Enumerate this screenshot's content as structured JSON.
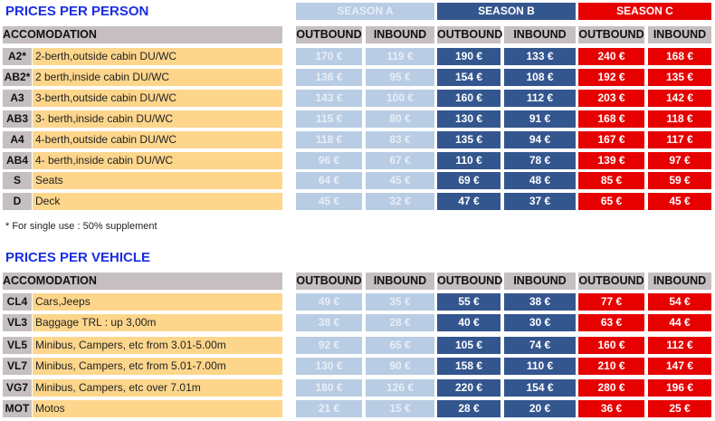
{
  "person": {
    "title": "PRICES PER PERSON",
    "seasons": [
      "SEASON A",
      "SEASON B",
      "SEASON C"
    ],
    "accomodation_header": "ACCOMODATION",
    "outbound": "OUTBOUND",
    "inbound": "INBOUND",
    "rows": [
      {
        "code": "A2*",
        "desc": "2-berth,outside cabin  DU/WC",
        "prices": [
          "170 €",
          "119 €",
          "190 €",
          "133 €",
          "240 €",
          "168 €"
        ]
      },
      {
        "code": "AB2*",
        "desc": "2 berth,inside cabin  DU/WC",
        "prices": [
          "136 €",
          "95 €",
          "154 €",
          "108 €",
          "192 €",
          "135 €"
        ]
      },
      {
        "code": "A3",
        "desc": "3-berth,outside cabin  DU/WC",
        "prices": [
          "143 €",
          "100 €",
          "160 €",
          "112 €",
          "203 €",
          "142 €"
        ]
      },
      {
        "code": "AB3",
        "desc": "3- berth,inside cabin  DU/WC",
        "prices": [
          "115 €",
          "80 €",
          "130 €",
          "91 €",
          "168 €",
          "118 €"
        ]
      },
      {
        "code": "A4",
        "desc": "4-berth,outside cabin  DU/WC",
        "prices": [
          "118 €",
          "83 €",
          "135 €",
          "94 €",
          "167 €",
          "117 €"
        ]
      },
      {
        "code": "AB4",
        "desc": "4- berth,inside cabin  DU/WC",
        "prices": [
          "96 €",
          "67 €",
          "110 €",
          "78 €",
          "139 €",
          "97 €"
        ]
      },
      {
        "code": "S",
        "desc": "Seats",
        "prices": [
          "64 €",
          "45 €",
          "69 €",
          "48 €",
          "85 €",
          "59 €"
        ]
      },
      {
        "code": "D",
        "desc": "Deck",
        "prices": [
          "45 €",
          "32 €",
          "47 €",
          "37 €",
          "65 €",
          "45 €"
        ]
      }
    ],
    "note": "* For single use : 50% supplement"
  },
  "vehicle": {
    "title": "PRICES PER VEHICLE",
    "accomodation_header": "ACCOMODATION",
    "outbound": "OUTBOUND",
    "inbound": "INBOUND",
    "rows": [
      {
        "code": "CL4",
        "desc": "Cars,Jeeps",
        "prices": [
          "49 €",
          "35 €",
          "55 €",
          "38 €",
          "77 €",
          "54 €"
        ]
      },
      {
        "code": "VL3",
        "desc": "Baggage TRL : up 3,00m",
        "prices": [
          "38 €",
          "28 €",
          "40 €",
          "30 €",
          "63 €",
          "44 €"
        ]
      },
      {
        "code": "VL5",
        "desc": "Minibus, Campers, etc from 3.01-5.00m",
        "prices": [
          "92 €",
          "65 €",
          "105 €",
          "74 €",
          "160 €",
          "112 €"
        ]
      },
      {
        "code": "VL7",
        "desc": "Minibus, Campers, etc from 5.01-7.00m",
        "prices": [
          "130 €",
          "90 €",
          "158 €",
          "110 €",
          "210 €",
          "147 €"
        ]
      },
      {
        "code": "VG7",
        "desc": "Minibus, Campers, etc over 7.01m",
        "prices": [
          "180 €",
          "126 €",
          "220 €",
          "154 €",
          "280 €",
          "196 €"
        ]
      },
      {
        "code": "MOT",
        "desc": "Motos",
        "prices": [
          "21 €",
          "15 €",
          "28 €",
          "20 €",
          "36 €",
          "25 €"
        ]
      }
    ]
  },
  "colors": {
    "season_a": "#b8cce4",
    "season_b": "#34568f",
    "season_c": "#e60000",
    "header": "#c5bfc2",
    "description": "#fdd68c"
  }
}
